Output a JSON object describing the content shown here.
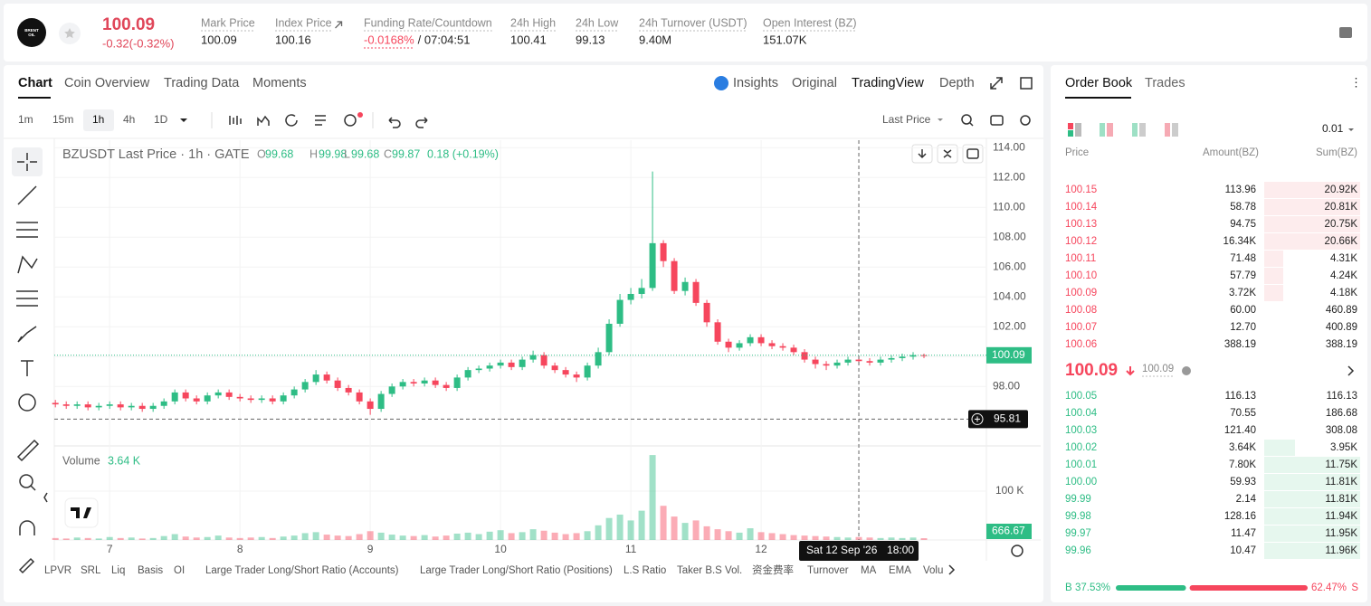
{
  "header": {
    "logo": [
      "BRENT",
      "OIL"
    ],
    "price": "100.09",
    "change": "-0.32(-0.32%)",
    "stats": [
      {
        "label": "Mark Price",
        "value": "100.09"
      },
      {
        "label": "Index Price",
        "value": "100.16"
      },
      {
        "label": "Funding Rate/Countdown",
        "value": "-0.0168%",
        "extra": "/ 07:04:51"
      },
      {
        "label": "24h High",
        "value": "100.41"
      },
      {
        "label": "24h Low",
        "value": "99.13"
      },
      {
        "label": "24h Turnover (USDT)",
        "value": "9.40M"
      },
      {
        "label": "Open Interest (BZ)",
        "value": "151.07K"
      }
    ]
  },
  "tabs": [
    "Chart",
    "Coin Overview",
    "Trading Data",
    "Moments"
  ],
  "view_tabs": [
    "Insights",
    "Original",
    "TradingView",
    "Depth"
  ],
  "intervals": [
    "1m",
    "15m",
    "1h",
    "4h",
    "1D"
  ],
  "price_source": "Last Price",
  "indicators": [
    "LPVR",
    "SRL",
    "Liq",
    "Basis",
    "OI",
    "Large Trader Long/Short Ratio (Accounts)",
    "Large Trader Long/Short Ratio (Positions)",
    "L.S Ratio",
    "Taker B.S Vol.",
    "资金费率",
    "Turnover",
    "MA",
    "EMA",
    "Volu"
  ],
  "chart_data": {
    "type": "candlestick",
    "title": "BZUSDT Last Price · 1h · GATE",
    "ohlc_legend": [
      {
        "label": "O",
        "value": "99.68"
      },
      {
        "label": "H",
        "value": "99.98"
      },
      {
        "label": "L",
        "value": "99.68"
      },
      {
        "label": "C",
        "value": "99.87"
      }
    ],
    "change": "0.18 (+0.19%)",
    "up_color": "#2ebd85",
    "down_color": "#f6465d",
    "x": [
      14,
      16,
      18,
      20,
      22,
      24,
      26,
      28,
      30,
      32,
      34,
      36,
      38,
      40,
      42,
      44,
      46,
      48,
      50,
      52,
      54,
      56,
      58,
      60,
      62,
      64,
      66,
      68,
      70,
      72,
      74,
      76,
      78,
      80,
      82,
      84,
      86,
      88,
      90,
      92,
      94,
      96,
      98,
      100,
      102,
      104,
      106,
      108,
      110,
      112,
      114,
      116,
      118,
      120,
      122,
      124,
      126,
      128,
      130,
      132,
      134,
      136,
      138,
      140,
      142,
      144,
      146,
      148,
      150,
      152,
      154,
      156,
      158,
      160,
      162,
      164,
      166,
      168,
      170,
      172,
      174
    ],
    "open": [
      96.9,
      96.8,
      96.7,
      96.8,
      96.6,
      96.7,
      96.8,
      96.6,
      96.7,
      96.5,
      96.7,
      97.0,
      97.6,
      97.2,
      97.0,
      97.4,
      97.6,
      97.3,
      97.2,
      97.1,
      97.2,
      97.0,
      97.4,
      97.8,
      98.3,
      98.8,
      98.4,
      97.9,
      97.6,
      97.0,
      96.5,
      97.5,
      98.0,
      98.3,
      98.2,
      98.4,
      98.1,
      97.9,
      98.6,
      99.1,
      99.2,
      99.4,
      99.6,
      99.3,
      99.8,
      100.1,
      99.4,
      99.1,
      98.8,
      98.6,
      99.4,
      100.3,
      102.2,
      103.8,
      104.2,
      104.6,
      107.6,
      106.4,
      104.4,
      105.0,
      103.6,
      102.3,
      101.0,
      100.6,
      100.9,
      101.3,
      100.9,
      100.7,
      100.6,
      100.3,
      99.8,
      99.5,
      99.4,
      99.6,
      99.8,
      99.7,
      99.6,
      99.8,
      99.9,
      100.0,
      100.1
    ],
    "high": [
      97.1,
      97.0,
      97.0,
      97.0,
      96.9,
      97.0,
      97.0,
      96.9,
      96.9,
      96.9,
      97.2,
      97.8,
      97.8,
      97.4,
      97.6,
      97.8,
      97.8,
      97.5,
      97.4,
      97.4,
      97.4,
      97.6,
      98.0,
      98.5,
      99.1,
      99.0,
      98.6,
      98.1,
      97.8,
      97.2,
      97.7,
      98.2,
      98.5,
      98.5,
      98.6,
      98.6,
      98.3,
      98.8,
      99.3,
      99.4,
      99.6,
      99.8,
      99.8,
      100.0,
      100.4,
      100.3,
      99.6,
      99.3,
      99.0,
      99.6,
      100.6,
      102.5,
      104.2,
      104.6,
      105.2,
      112.4,
      107.8,
      106.6,
      105.3,
      105.2,
      103.8,
      102.5,
      101.2,
      101.1,
      101.5,
      101.5,
      101.1,
      100.9,
      100.8,
      100.5,
      100.0,
      99.7,
      99.8,
      100.0,
      100.0,
      99.9,
      100.0,
      100.1,
      100.2,
      100.3,
      100.2
    ],
    "low": [
      96.6,
      96.5,
      96.5,
      96.4,
      96.4,
      96.5,
      96.4,
      96.4,
      96.3,
      96.3,
      96.5,
      96.8,
      97.0,
      96.8,
      96.8,
      97.2,
      97.1,
      97.0,
      96.9,
      96.9,
      96.8,
      96.8,
      97.2,
      97.6,
      98.1,
      98.2,
      97.7,
      97.4,
      96.8,
      96.1,
      96.3,
      97.3,
      97.8,
      98.0,
      98.0,
      97.9,
      97.7,
      97.7,
      98.4,
      98.9,
      99.0,
      99.2,
      99.1,
      99.1,
      99.6,
      99.2,
      98.9,
      98.6,
      98.3,
      98.4,
      99.2,
      100.1,
      102.0,
      103.5,
      103.9,
      104.4,
      106.0,
      104.2,
      104.1,
      103.4,
      102.0,
      100.8,
      100.3,
      100.4,
      100.7,
      100.7,
      100.5,
      100.4,
      100.1,
      99.6,
      99.2,
      99.1,
      99.2,
      99.4,
      99.5,
      99.4,
      99.4,
      99.6,
      99.7,
      99.8,
      99.9
    ],
    "close": [
      96.8,
      96.7,
      96.8,
      96.6,
      96.7,
      96.8,
      96.6,
      96.7,
      96.5,
      96.7,
      97.0,
      97.6,
      97.2,
      97.0,
      97.4,
      97.6,
      97.3,
      97.2,
      97.1,
      97.2,
      97.0,
      97.4,
      97.8,
      98.3,
      98.8,
      98.4,
      97.9,
      97.6,
      97.0,
      96.5,
      97.5,
      98.0,
      98.3,
      98.2,
      98.4,
      98.1,
      97.9,
      98.6,
      99.1,
      99.2,
      99.4,
      99.6,
      99.3,
      99.8,
      100.1,
      99.4,
      99.1,
      98.8,
      98.6,
      99.4,
      100.3,
      102.2,
      103.8,
      104.2,
      104.6,
      107.6,
      106.4,
      104.4,
      105.0,
      103.6,
      102.3,
      101.0,
      100.6,
      100.9,
      101.3,
      100.9,
      100.7,
      100.6,
      100.3,
      99.8,
      99.5,
      99.4,
      99.6,
      99.8,
      99.7,
      99.6,
      99.8,
      99.9,
      100.0,
      100.1,
      100.09
    ],
    "volume": [
      4000,
      3000,
      5000,
      4000,
      3000,
      6000,
      4000,
      5000,
      3000,
      4000,
      8000,
      12000,
      7000,
      5000,
      6000,
      9000,
      5000,
      4000,
      5000,
      6000,
      4000,
      7000,
      9000,
      14000,
      16000,
      11000,
      9000,
      8000,
      12000,
      18000,
      15000,
      11000,
      9000,
      8000,
      10000,
      7000,
      9000,
      13000,
      15000,
      12000,
      17000,
      20000,
      14000,
      16000,
      22000,
      19000,
      15000,
      12000,
      14000,
      18000,
      30000,
      45000,
      52000,
      40000,
      60000,
      174000,
      70000,
      48000,
      35000,
      40000,
      28000,
      22000,
      18000,
      15000,
      24000,
      16000,
      14000,
      12000,
      10000,
      9000,
      8000,
      7000,
      6000,
      5000,
      6000,
      5000,
      4000,
      5000,
      4000,
      5000,
      3640
    ],
    "volume_label": "Volume",
    "volume_value_label": "3.64 K",
    "volume_last_label": "666.67",
    "xlim": [
      13.8,
      185.5
    ],
    "xticks": [
      {
        "value": 24,
        "label": "7"
      },
      {
        "value": 48,
        "label": "8"
      },
      {
        "value": 72,
        "label": "9"
      },
      {
        "value": 96,
        "label": "10"
      },
      {
        "value": 120,
        "label": "11"
      },
      {
        "value": 144,
        "label": "12"
      }
    ],
    "ylim": [
      94.2,
      114.5
    ],
    "yticks": [
      {
        "value": 98,
        "label": "98.00"
      },
      {
        "value": 100,
        "label": "100.00"
      },
      {
        "value": 102,
        "label": "102.00"
      },
      {
        "value": 104,
        "label": "104.00"
      },
      {
        "value": 106,
        "label": "106.00"
      },
      {
        "value": 108,
        "label": "108.00"
      },
      {
        "value": 110,
        "label": "110.00"
      },
      {
        "value": 112,
        "label": "112.00"
      },
      {
        "value": 114,
        "label": "114.00"
      }
    ],
    "volume_ylim": [
      0,
      189000
    ],
    "volume_yticks": [
      {
        "value": 100000,
        "label": "100 K"
      }
    ],
    "last_price": {
      "value": 100.09,
      "label": "100.09"
    },
    "crosshair": {
      "price": {
        "value": 95.81,
        "label": "95.81"
      },
      "time": {
        "value": 162,
        "label": "Sat 12 Sep '26",
        "time_label": "18:00"
      }
    }
  },
  "order_book": {
    "tabs": [
      "Order Book",
      "Trades"
    ],
    "precision": "0.01",
    "columns": [
      "Price",
      "Amount(BZ)",
      "Sum(BZ)"
    ],
    "asks": [
      [
        "100.15",
        "113.96",
        "20.92K"
      ],
      [
        "100.14",
        "58.78",
        "20.81K"
      ],
      [
        "100.13",
        "94.75",
        "20.75K"
      ],
      [
        "100.12",
        "16.34K",
        "20.66K"
      ],
      [
        "100.11",
        "71.48",
        "4.31K"
      ],
      [
        "100.10",
        "57.79",
        "4.24K"
      ],
      [
        "100.09",
        "3.72K",
        "4.18K"
      ],
      [
        "100.08",
        "60.00",
        "460.89"
      ],
      [
        "100.07",
        "12.70",
        "400.89"
      ],
      [
        "100.06",
        "388.19",
        "388.19"
      ]
    ],
    "mid_price": "100.09",
    "mark_price": "100.09",
    "bids": [
      [
        "100.05",
        "116.13",
        "116.13"
      ],
      [
        "100.04",
        "70.55",
        "186.68"
      ],
      [
        "100.03",
        "121.40",
        "308.08"
      ],
      [
        "100.02",
        "3.64K",
        "3.95K"
      ],
      [
        "100.01",
        "7.80K",
        "11.75K"
      ],
      [
        "100.00",
        "59.93",
        "11.81K"
      ],
      [
        "99.99",
        "2.14",
        "11.81K"
      ],
      [
        "99.98",
        "128.16",
        "11.94K"
      ],
      [
        "99.97",
        "11.47",
        "11.95K"
      ],
      [
        "99.96",
        "10.47",
        "11.96K"
      ]
    ],
    "buy": {
      "label": "B",
      "value": 37.53,
      "value_label": "37.53%"
    },
    "sell": {
      "label": "S",
      "value": 62.47,
      "value_label": "62.47%"
    }
  }
}
